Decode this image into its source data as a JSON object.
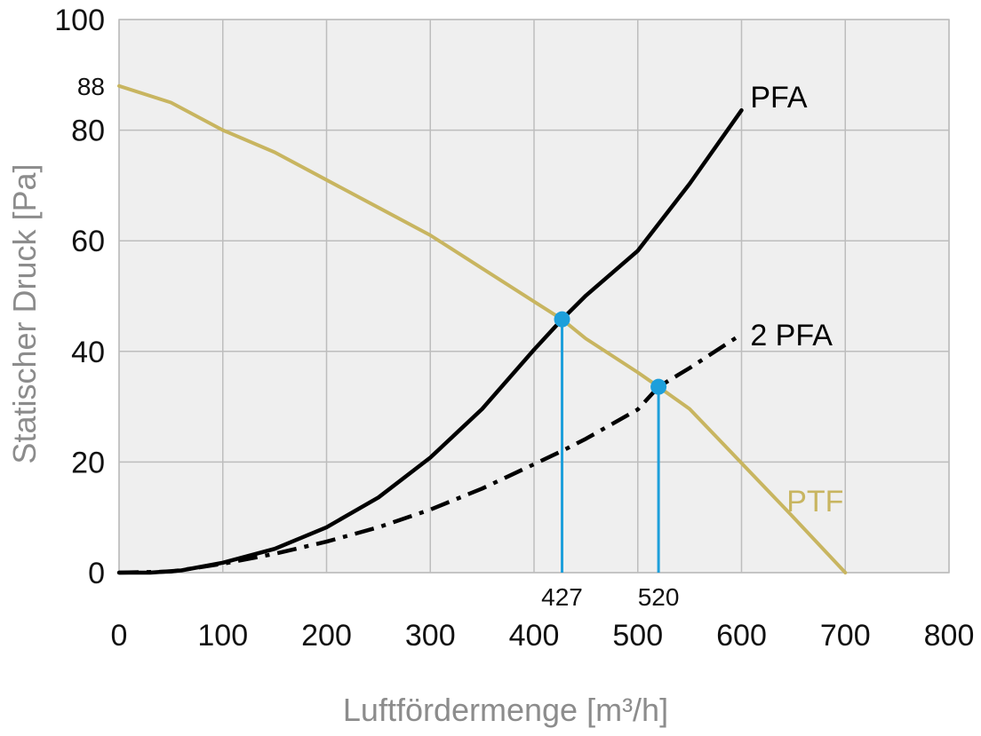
{
  "chart_data": {
    "type": "line",
    "xlabel": "Luftfördermenge [m³/h]",
    "ylabel": "Statischer Druck [Pa]",
    "xlim": [
      0,
      800
    ],
    "ylim": [
      0,
      100
    ],
    "x_ticks": [
      0,
      100,
      200,
      300,
      400,
      500,
      600,
      700,
      800
    ],
    "y_ticks": [
      0,
      20,
      40,
      60,
      80,
      100
    ],
    "extra_y_tick": 88,
    "grid": true,
    "colors": {
      "background": "#efefef",
      "grid": "#bdbdbd",
      "PFA": "#000000",
      "2 PFA": "#000000",
      "PTF": "#c8b560",
      "marker": "#1d9fdb"
    },
    "series": [
      {
        "name": "PFA",
        "style": "solid",
        "points": [
          [
            0,
            0
          ],
          [
            30,
            0
          ],
          [
            60,
            0.4
          ],
          [
            100,
            1.8
          ],
          [
            150,
            4.3
          ],
          [
            200,
            8.2
          ],
          [
            250,
            13.6
          ],
          [
            300,
            20.8
          ],
          [
            350,
            29.6
          ],
          [
            400,
            40.3
          ],
          [
            427,
            45.8
          ],
          [
            450,
            50.1
          ],
          [
            500,
            58.2
          ],
          [
            550,
            70.3
          ],
          [
            600,
            83.6
          ]
        ]
      },
      {
        "name": "2 PFA",
        "style": "dashdot",
        "points": [
          [
            0,
            0
          ],
          [
            50,
            0.2
          ],
          [
            100,
            1.6
          ],
          [
            150,
            3.4
          ],
          [
            200,
            5.6
          ],
          [
            250,
            8.2
          ],
          [
            300,
            11.4
          ],
          [
            350,
            15.2
          ],
          [
            400,
            19.6
          ],
          [
            427,
            22.0
          ],
          [
            450,
            24.2
          ],
          [
            500,
            29.5
          ],
          [
            520,
            33.6
          ],
          [
            550,
            37.0
          ],
          [
            600,
            43.1
          ]
        ]
      },
      {
        "name": "PTF",
        "style": "solid",
        "points": [
          [
            0,
            88
          ],
          [
            50,
            85
          ],
          [
            100,
            80
          ],
          [
            150,
            76
          ],
          [
            200,
            71
          ],
          [
            250,
            66
          ],
          [
            300,
            61
          ],
          [
            350,
            55
          ],
          [
            400,
            49
          ],
          [
            427,
            45.8
          ],
          [
            450,
            42.3
          ],
          [
            500,
            36.2
          ],
          [
            520,
            33.6
          ],
          [
            550,
            29.6
          ],
          [
            600,
            19.8
          ],
          [
            650,
            10
          ],
          [
            700,
            0
          ]
        ]
      }
    ],
    "operating_points": [
      {
        "x": 427,
        "y": 45.8,
        "label": "427"
      },
      {
        "x": 520,
        "y": 33.6,
        "label": "520"
      }
    ],
    "annotations": [
      {
        "text": "PFA",
        "series": "PFA",
        "near_x": 605,
        "near_y": 86
      },
      {
        "text": "2 PFA",
        "series": "2 PFA",
        "near_x": 605,
        "near_y": 43
      },
      {
        "text": "PTF",
        "series": "PTF",
        "near_x": 640,
        "near_y": 13
      }
    ]
  }
}
